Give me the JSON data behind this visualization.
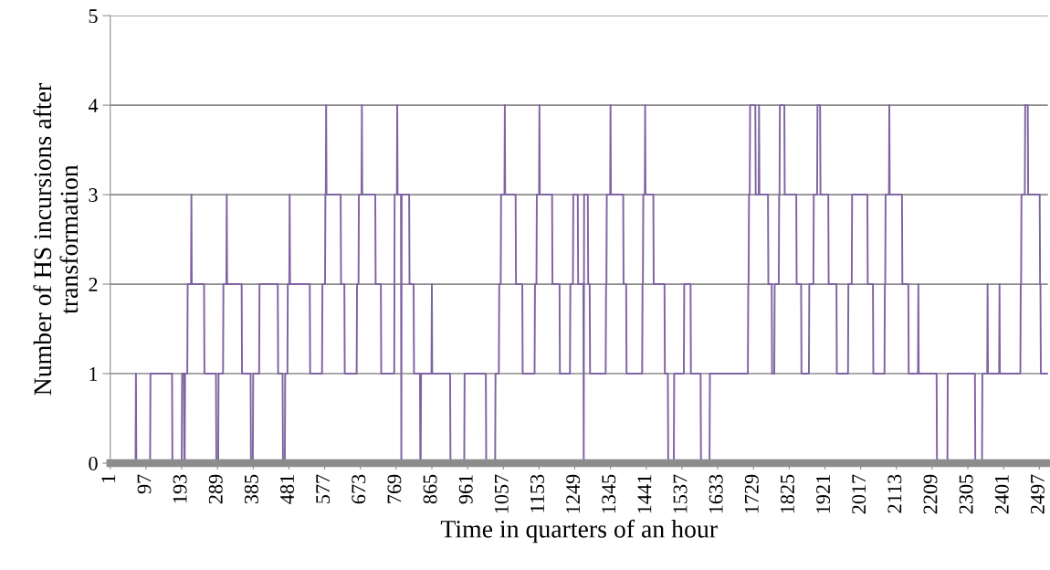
{
  "chart_data": {
    "type": "line",
    "xlabel": "Time in quarters of an hour",
    "ylabel": "Number of HS incursions after\ntransformation",
    "series": [
      {
        "color": "#8064a2",
        "x": [
          1,
          69,
          70,
          71,
          108,
          109,
          167,
          168,
          193,
          194,
          199,
          200,
          201,
          202,
          208,
          209,
          218,
          219,
          220,
          253,
          254,
          285,
          286,
          291,
          292,
          304,
          305,
          313,
          314,
          315,
          354,
          355,
          378,
          379,
          384,
          385,
          401,
          402,
          451,
          452,
          464,
          465,
          470,
          471,
          477,
          478,
          482,
          483,
          484,
          537,
          538,
          570,
          571,
          578,
          579,
          580,
          581,
          582,
          620,
          621,
          630,
          631,
          663,
          664,
          668,
          669,
          676,
          677,
          678,
          713,
          714,
          728,
          729,
          764,
          765,
          771,
          772,
          773,
          782,
          783,
          784,
          804,
          805,
          816,
          817,
          833,
          834,
          835,
          836,
          864,
          865,
          866,
          914,
          915,
          952,
          953,
          1010,
          1011,
          1035,
          1036,
          1045,
          1046,
          1050,
          1051,
          1060,
          1061,
          1062,
          1090,
          1091,
          1108,
          1109,
          1141,
          1142,
          1146,
          1147,
          1153,
          1154,
          1155,
          1188,
          1189,
          1208,
          1209,
          1236,
          1237,
          1244,
          1245,
          1257,
          1258,
          1272,
          1273,
          1274,
          1284,
          1285,
          1289,
          1290,
          1332,
          1333,
          1334,
          1335,
          1344,
          1345,
          1346,
          1379,
          1380,
          1387,
          1388,
          1430,
          1431,
          1432,
          1433,
          1437,
          1438,
          1439,
          1460,
          1461,
          1490,
          1491,
          1499,
          1500,
          1515,
          1516,
          1542,
          1543,
          1560,
          1561,
          1587,
          1588,
          1611,
          1612,
          1714,
          1715,
          1716,
          1717,
          1719,
          1720,
          1734,
          1735,
          1743,
          1744,
          1745,
          1768,
          1769,
          1778,
          1779,
          1785,
          1786,
          1797,
          1798,
          1799,
          1800,
          1812,
          1813,
          1844,
          1845,
          1857,
          1858,
          1878,
          1879,
          1890,
          1891,
          1900,
          1901,
          1908,
          1909,
          1930,
          1931,
          1952,
          1953,
          1983,
          1984,
          1993,
          1994,
          2035,
          2036,
          2050,
          2051,
          2081,
          2082,
          2083,
          2084,
          2093,
          2094,
          2095,
          2128,
          2129,
          2145,
          2146,
          2171,
          2172,
          2173,
          2221,
          2222,
          2250,
          2251,
          2324,
          2325,
          2343,
          2344,
          2357,
          2358,
          2359,
          2389,
          2390,
          2391,
          2446,
          2447,
          2448,
          2449,
          2458,
          2459,
          2466,
          2467,
          2498,
          2499,
          2500,
          2501,
          2520
        ],
        "values": [
          0,
          0,
          1,
          0,
          0,
          1,
          1,
          0,
          0,
          1,
          1,
          0,
          0,
          1,
          1,
          2,
          2,
          3,
          2,
          2,
          1,
          1,
          0,
          0,
          1,
          1,
          2,
          2,
          3,
          2,
          2,
          1,
          1,
          0,
          0,
          1,
          1,
          2,
          2,
          1,
          1,
          0,
          0,
          1,
          1,
          2,
          2,
          3,
          2,
          2,
          1,
          1,
          2,
          2,
          3,
          3,
          4,
          3,
          3,
          2,
          2,
          1,
          1,
          2,
          2,
          3,
          3,
          4,
          3,
          3,
          2,
          2,
          1,
          1,
          3,
          3,
          4,
          3,
          3,
          0,
          3,
          3,
          2,
          2,
          1,
          1,
          0,
          0,
          1,
          1,
          2,
          1,
          1,
          0,
          0,
          1,
          1,
          0,
          0,
          1,
          1,
          2,
          2,
          3,
          3,
          4,
          3,
          3,
          2,
          2,
          1,
          1,
          2,
          2,
          3,
          3,
          4,
          3,
          3,
          2,
          2,
          1,
          1,
          2,
          2,
          3,
          3,
          2,
          2,
          0,
          3,
          3,
          2,
          2,
          1,
          1,
          2,
          2,
          3,
          3,
          4,
          3,
          3,
          2,
          2,
          1,
          1,
          2,
          2,
          3,
          3,
          4,
          3,
          3,
          2,
          2,
          1,
          1,
          0,
          0,
          1,
          1,
          2,
          2,
          1,
          1,
          0,
          0,
          1,
          1,
          2,
          2,
          3,
          3,
          4,
          4,
          3,
          3,
          4,
          3,
          3,
          2,
          2,
          1,
          1,
          2,
          2,
          3,
          3,
          4,
          4,
          3,
          3,
          2,
          2,
          1,
          1,
          2,
          2,
          3,
          3,
          4,
          4,
          3,
          3,
          2,
          2,
          1,
          1,
          2,
          2,
          3,
          3,
          2,
          2,
          1,
          1,
          2,
          2,
          3,
          3,
          4,
          3,
          3,
          2,
          2,
          1,
          1,
          2,
          1,
          1,
          0,
          0,
          1,
          1,
          0,
          0,
          1,
          1,
          2,
          1,
          1,
          2,
          1,
          1,
          2,
          2,
          3,
          3,
          4,
          4,
          3,
          3,
          2,
          2,
          1,
          1
        ]
      }
    ],
    "xlim": [
      1,
      2520
    ],
    "xticks": [
      1,
      97,
      193,
      289,
      385,
      481,
      577,
      673,
      769,
      865,
      961,
      1057,
      1153,
      1249,
      1345,
      1441,
      1537,
      1633,
      1729,
      1825,
      1921,
      2017,
      2113,
      2209,
      2305,
      2401,
      2497
    ],
    "ylim": [
      0,
      5
    ],
    "yticks": [
      0,
      1,
      2,
      3,
      4,
      5
    ],
    "grid": "y",
    "legend": false,
    "marker": "none",
    "line_style": "solid"
  }
}
